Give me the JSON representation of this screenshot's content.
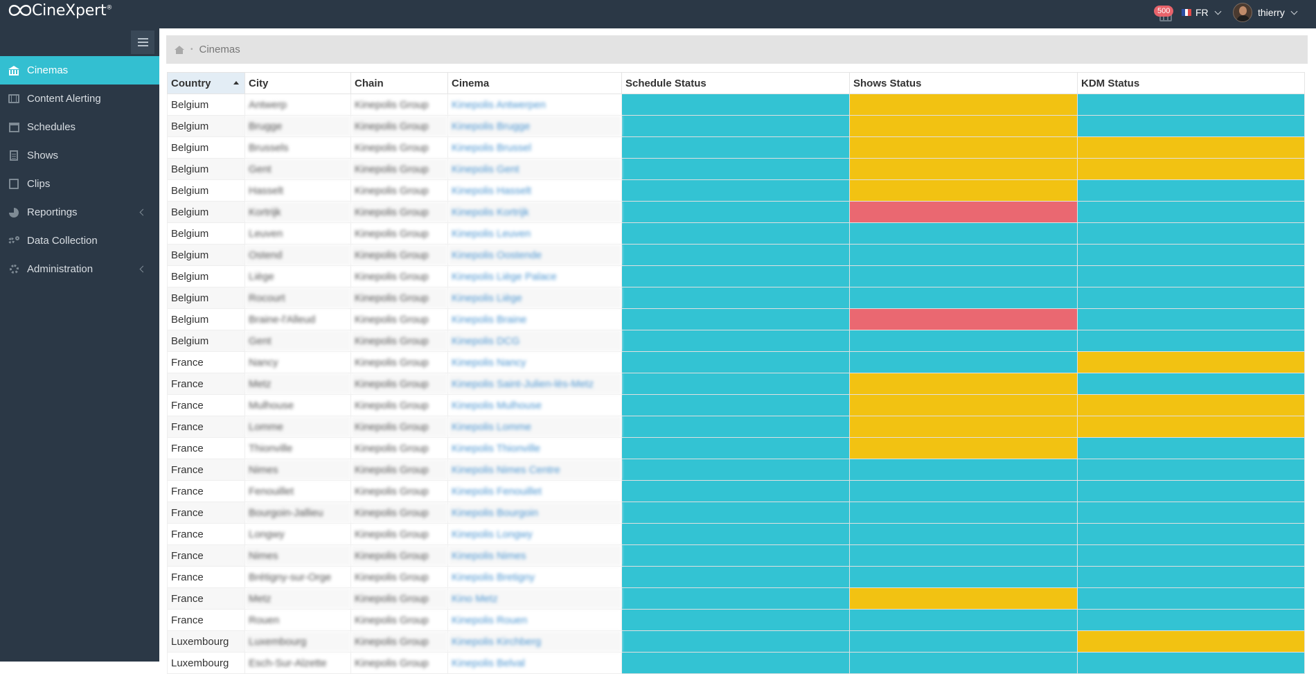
{
  "app": {
    "logo_text": "CineXpert",
    "logo_mark": "®"
  },
  "header": {
    "notification_count": "500",
    "notification_icon": "film-icon",
    "language": "FR",
    "user_name": "thierry"
  },
  "sidebar": {
    "items": [
      {
        "label": "Cinemas",
        "icon": "bank-icon",
        "active": true
      },
      {
        "label": "Content Alerting",
        "icon": "film-icon"
      },
      {
        "label": "Schedules",
        "icon": "calendar-icon"
      },
      {
        "label": "Shows",
        "icon": "document-icon"
      },
      {
        "label": "Clips",
        "icon": "clip-icon"
      },
      {
        "label": "Reportings",
        "icon": "pie-chart-icon",
        "has_submenu": true
      },
      {
        "label": "Data Collection",
        "icon": "cogs-icon"
      },
      {
        "label": "Administration",
        "icon": "gear-icon",
        "has_submenu": true
      }
    ]
  },
  "breadcrumb": {
    "current": "Cinemas",
    "separator": "•"
  },
  "table": {
    "columns": [
      "Country",
      "City",
      "Chain",
      "Cinema",
      "Schedule Status",
      "Shows Status",
      "KDM Status"
    ],
    "sorted_column": "Country",
    "sort_direction": "ascending",
    "status_colors": {
      "ok": "#33c3d3",
      "warn": "#f2c212",
      "err": "#ea6871"
    },
    "rows": [
      {
        "country": "Belgium",
        "city": "Antwerp",
        "chain": "Kinepolis Group",
        "cinema": "Kinepolis Antwerpen",
        "schedule": "ok",
        "shows": "warn",
        "kdm": "ok"
      },
      {
        "country": "Belgium",
        "city": "Brugge",
        "chain": "Kinepolis Group",
        "cinema": "Kinepolis Brugge",
        "schedule": "ok",
        "shows": "warn",
        "kdm": "ok"
      },
      {
        "country": "Belgium",
        "city": "Brussels",
        "chain": "Kinepolis Group",
        "cinema": "Kinepolis Brussel",
        "schedule": "ok",
        "shows": "warn",
        "kdm": "warn"
      },
      {
        "country": "Belgium",
        "city": "Gent",
        "chain": "Kinepolis Group",
        "cinema": "Kinepolis Gent",
        "schedule": "ok",
        "shows": "warn",
        "kdm": "warn"
      },
      {
        "country": "Belgium",
        "city": "Hasselt",
        "chain": "Kinepolis Group",
        "cinema": "Kinepolis Hasselt",
        "schedule": "ok",
        "shows": "warn",
        "kdm": "ok"
      },
      {
        "country": "Belgium",
        "city": "Kortrijk",
        "chain": "Kinepolis Group",
        "cinema": "Kinepolis Kortrijk",
        "schedule": "ok",
        "shows": "err",
        "kdm": "ok"
      },
      {
        "country": "Belgium",
        "city": "Leuven",
        "chain": "Kinepolis Group",
        "cinema": "Kinepolis Leuven",
        "schedule": "ok",
        "shows": "ok",
        "kdm": "ok"
      },
      {
        "country": "Belgium",
        "city": "Ostend",
        "chain": "Kinepolis Group",
        "cinema": "Kinepolis Oostende",
        "schedule": "ok",
        "shows": "ok",
        "kdm": "ok"
      },
      {
        "country": "Belgium",
        "city": "Liège",
        "chain": "Kinepolis Group",
        "cinema": "Kinepolis Liège Palace",
        "schedule": "ok",
        "shows": "ok",
        "kdm": "ok"
      },
      {
        "country": "Belgium",
        "city": "Rocourt",
        "chain": "Kinepolis Group",
        "cinema": "Kinepolis Liège",
        "schedule": "ok",
        "shows": "ok",
        "kdm": "ok"
      },
      {
        "country": "Belgium",
        "city": "Braine-l'Alleud",
        "chain": "Kinepolis Group",
        "cinema": "Kinepolis Braine",
        "schedule": "ok",
        "shows": "err",
        "kdm": "ok"
      },
      {
        "country": "Belgium",
        "city": "Gent",
        "chain": "Kinepolis Group",
        "cinema": "Kinepolis DCG",
        "schedule": "ok",
        "shows": "ok",
        "kdm": "ok"
      },
      {
        "country": "France",
        "city": "Nancy",
        "chain": "Kinepolis Group",
        "cinema": "Kinepolis Nancy",
        "schedule": "ok",
        "shows": "ok",
        "kdm": "warn"
      },
      {
        "country": "France",
        "city": "Metz",
        "chain": "Kinepolis Group",
        "cinema": "Kinepolis Saint-Julien-lès-Metz",
        "schedule": "ok",
        "shows": "warn",
        "kdm": "ok"
      },
      {
        "country": "France",
        "city": "Mulhouse",
        "chain": "Kinepolis Group",
        "cinema": "Kinepolis Mulhouse",
        "schedule": "ok",
        "shows": "warn",
        "kdm": "warn"
      },
      {
        "country": "France",
        "city": "Lomme",
        "chain": "Kinepolis Group",
        "cinema": "Kinepolis Lomme",
        "schedule": "ok",
        "shows": "warn",
        "kdm": "warn"
      },
      {
        "country": "France",
        "city": "Thionville",
        "chain": "Kinepolis Group",
        "cinema": "Kinepolis Thionville",
        "schedule": "ok",
        "shows": "warn",
        "kdm": "ok"
      },
      {
        "country": "France",
        "city": "Nimes",
        "chain": "Kinepolis Group",
        "cinema": "Kinepolis Nimes Centre",
        "schedule": "ok",
        "shows": "ok",
        "kdm": "ok"
      },
      {
        "country": "France",
        "city": "Fenouillet",
        "chain": "Kinepolis Group",
        "cinema": "Kinepolis Fenouillet",
        "schedule": "ok",
        "shows": "ok",
        "kdm": "ok"
      },
      {
        "country": "France",
        "city": "Bourgoin-Jallieu",
        "chain": "Kinepolis Group",
        "cinema": "Kinepolis Bourgoin",
        "schedule": "ok",
        "shows": "ok",
        "kdm": "ok"
      },
      {
        "country": "France",
        "city": "Longwy",
        "chain": "Kinepolis Group",
        "cinema": "Kinepolis Longwy",
        "schedule": "ok",
        "shows": "ok",
        "kdm": "ok"
      },
      {
        "country": "France",
        "city": "Nimes",
        "chain": "Kinepolis Group",
        "cinema": "Kinepolis Nimes",
        "schedule": "ok",
        "shows": "ok",
        "kdm": "ok"
      },
      {
        "country": "France",
        "city": "Brétigny-sur-Orge",
        "chain": "Kinepolis Group",
        "cinema": "Kinepolis Bretigny",
        "schedule": "ok",
        "shows": "ok",
        "kdm": "ok"
      },
      {
        "country": "France",
        "city": "Metz",
        "chain": "Kinepolis Group",
        "cinema": "Kino Metz",
        "schedule": "ok",
        "shows": "warn",
        "kdm": "ok"
      },
      {
        "country": "France",
        "city": "Rouen",
        "chain": "Kinepolis Group",
        "cinema": "Kinepolis Rouen",
        "schedule": "ok",
        "shows": "ok",
        "kdm": "ok"
      },
      {
        "country": "Luxembourg",
        "city": "Luxembourg",
        "chain": "Kinepolis Group",
        "cinema": "Kinepolis Kirchberg",
        "schedule": "ok",
        "shows": "ok",
        "kdm": "warn"
      },
      {
        "country": "Luxembourg",
        "city": "Esch-Sur-Alzette",
        "chain": "Kinepolis Group",
        "cinema": "Kinepolis Belval",
        "schedule": "ok",
        "shows": "ok",
        "kdm": "ok"
      }
    ]
  }
}
